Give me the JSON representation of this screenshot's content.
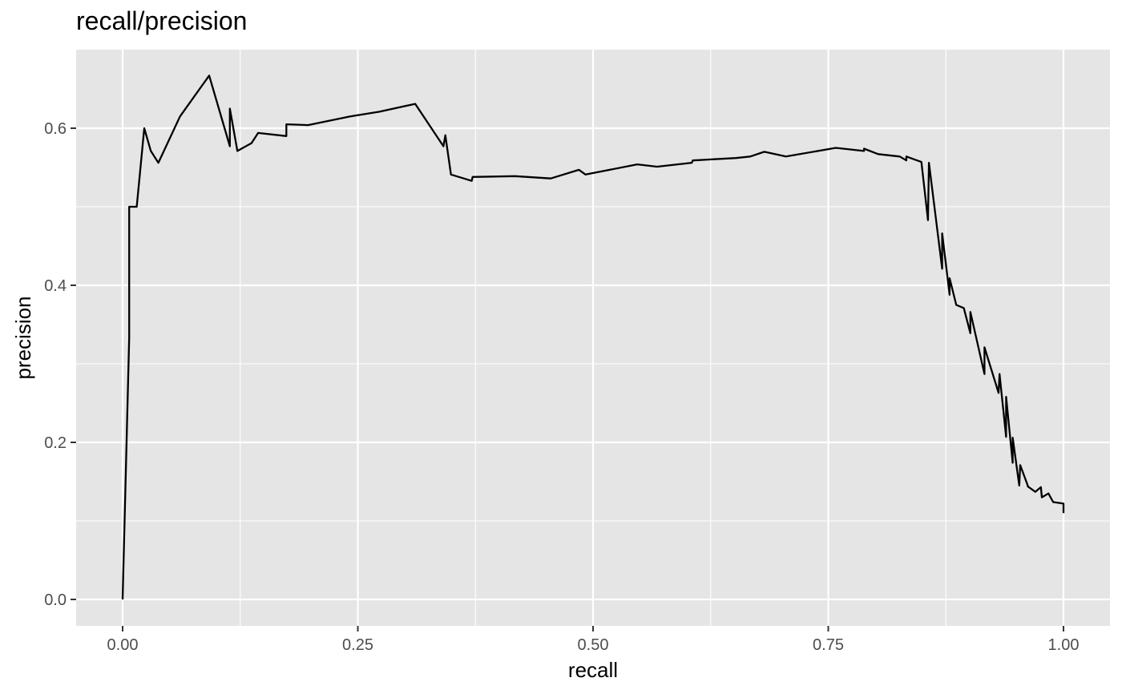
{
  "chart_data": {
    "type": "line",
    "title": "recall/precision",
    "xlabel": "recall",
    "ylabel": "precision",
    "xlim": [
      0,
      1
    ],
    "ylim": [
      0,
      0.67
    ],
    "xticks": [
      "0.00",
      "0.25",
      "0.50",
      "0.75",
      "1.00"
    ],
    "yticks": [
      "0.0",
      "0.2",
      "0.4",
      "0.6"
    ],
    "grid": true,
    "colors": {
      "panel": "#e5e5e5",
      "grid": "#ffffff",
      "line": "#000000",
      "tick_text": "#4d4d4d"
    },
    "series": [
      {
        "x": [
          0.0,
          0.007,
          0.007,
          0.015,
          0.023,
          0.03,
          0.038,
          0.061,
          0.092,
          0.114,
          0.114,
          0.122,
          0.137,
          0.144,
          0.174,
          0.174,
          0.197,
          0.242,
          0.273,
          0.311,
          0.341,
          0.343,
          0.349,
          0.371,
          0.372,
          0.417,
          0.455,
          0.485,
          0.492,
          0.547,
          0.568,
          0.605,
          0.606,
          0.652,
          0.667,
          0.682,
          0.705,
          0.758,
          0.788,
          0.788,
          0.803,
          0.826,
          0.833,
          0.833,
          0.849,
          0.856,
          0.857,
          0.871,
          0.871,
          0.879,
          0.879,
          0.886,
          0.894,
          0.901,
          0.901,
          0.916,
          0.916,
          0.931,
          0.932,
          0.939,
          0.939,
          0.946,
          0.946,
          0.953,
          0.954,
          0.962,
          0.962,
          0.97,
          0.976,
          0.977,
          0.984,
          0.989,
          1.0,
          1.0
        ],
        "y": [
          0.0,
          0.333,
          0.5,
          0.5,
          0.6,
          0.571,
          0.556,
          0.615,
          0.667,
          0.577,
          0.625,
          0.571,
          0.581,
          0.594,
          0.59,
          0.605,
          0.604,
          0.615,
          0.621,
          0.631,
          0.577,
          0.591,
          0.541,
          0.533,
          0.538,
          0.539,
          0.536,
          0.547,
          0.541,
          0.554,
          0.551,
          0.556,
          0.559,
          0.562,
          0.564,
          0.57,
          0.564,
          0.575,
          0.571,
          0.574,
          0.567,
          0.564,
          0.559,
          0.564,
          0.557,
          0.483,
          0.556,
          0.421,
          0.466,
          0.388,
          0.409,
          0.375,
          0.371,
          0.339,
          0.366,
          0.287,
          0.321,
          0.263,
          0.287,
          0.207,
          0.258,
          0.174,
          0.206,
          0.145,
          0.171,
          0.145,
          0.144,
          0.137,
          0.143,
          0.13,
          0.135,
          0.124,
          0.122,
          0.11
        ]
      }
    ]
  }
}
